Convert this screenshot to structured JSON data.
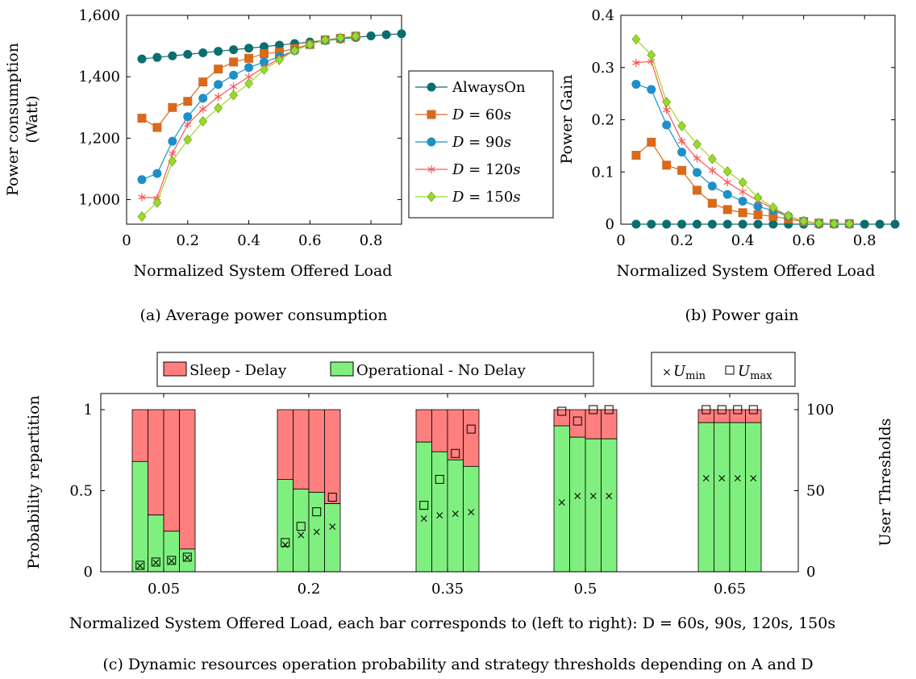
{
  "chart_data": [
    {
      "type": "line",
      "caption": "(a) Average power consumption",
      "xlabel": "Normalized System Offered Load",
      "ylabel": [
        "Power consumption",
        "(Watt)"
      ],
      "xlim": [
        0,
        0.9
      ],
      "ylim": [
        920,
        1600
      ],
      "xticks": [
        0,
        0.2,
        0.4,
        0.6,
        0.8
      ],
      "xtick_labels": [
        "0",
        "0.2",
        "0.4",
        "0.6",
        "0.8"
      ],
      "yticks": [
        1000,
        1200,
        1400,
        1600
      ],
      "ytick_labels": [
        "1,000",
        "1,200",
        "1,400",
        "1,600"
      ],
      "grid": false,
      "legend_position": "outside-right",
      "x": [
        0.05,
        0.1,
        0.15,
        0.2,
        0.25,
        0.3,
        0.35,
        0.4,
        0.45,
        0.5,
        0.55,
        0.6,
        0.65,
        0.7,
        0.75,
        0.8,
        0.85,
        0.9
      ],
      "series": [
        {
          "name": "AlwaysOn",
          "color": "#0b6e6e",
          "marker": "circle",
          "values": [
            1458,
            1463,
            1468,
            1473,
            1478,
            1483,
            1488,
            1493,
            1498,
            1503,
            1508,
            1513,
            1518,
            1523,
            1528,
            1533,
            1537,
            1540
          ]
        },
        {
          "name": "D = 60s",
          "color": "#d9691b",
          "marker": "square",
          "values": [
            1265,
            1235,
            1300,
            1320,
            1383,
            1425,
            1448,
            1460,
            1475,
            1480,
            1492,
            1505,
            1520,
            1525,
            1532,
            null,
            null,
            null
          ]
        },
        {
          "name": "D = 90s",
          "color": "#1f8fc7",
          "marker": "circle",
          "values": [
            1065,
            1085,
            1190,
            1270,
            1330,
            1375,
            1405,
            1430,
            1448,
            1465,
            1485,
            1505,
            1520,
            1525,
            1532,
            null,
            null,
            null
          ]
        },
        {
          "name": "D = 120s",
          "color": "#ff5555",
          "marker": "star",
          "values": [
            1008,
            1005,
            1150,
            1245,
            1295,
            1335,
            1368,
            1400,
            1430,
            1460,
            1485,
            1505,
            1520,
            1527,
            1532,
            null,
            null,
            null
          ]
        },
        {
          "name": "D = 150s",
          "color": "#99d92a",
          "marker": "diamond",
          "values": [
            945,
            990,
            1125,
            1195,
            1255,
            1298,
            1340,
            1378,
            1423,
            1455,
            1485,
            1505,
            1520,
            1527,
            1532,
            null,
            null,
            null
          ]
        }
      ]
    },
    {
      "type": "line",
      "caption": "(b) Power gain",
      "xlabel": "Normalized System Offered Load",
      "ylabel": "Power Gain",
      "xlim": [
        0,
        0.9
      ],
      "ylim": [
        0,
        0.4
      ],
      "xticks": [
        0,
        0.2,
        0.4,
        0.6,
        0.8
      ],
      "xtick_labels": [
        "0",
        "0.2",
        "0.4",
        "0.6",
        "0.8"
      ],
      "yticks": [
        0,
        0.1,
        0.2,
        0.3,
        0.4
      ],
      "ytick_labels": [
        "0",
        "0.1",
        "0.2",
        "0.3",
        "0.4"
      ],
      "grid": false,
      "x": [
        0.05,
        0.1,
        0.15,
        0.2,
        0.25,
        0.3,
        0.35,
        0.4,
        0.45,
        0.5,
        0.55,
        0.6,
        0.65,
        0.7,
        0.75,
        0.8,
        0.85,
        0.9
      ],
      "series": [
        {
          "name": "AlwaysOn",
          "color": "#0b6e6e",
          "marker": "circle",
          "values": [
            0,
            0,
            0,
            0,
            0,
            0,
            0,
            0,
            0,
            0,
            0,
            0,
            0,
            0,
            0,
            0,
            0,
            0
          ]
        },
        {
          "name": "D = 60s",
          "color": "#d9691b",
          "marker": "square",
          "values": [
            0.132,
            0.157,
            0.113,
            0.103,
            0.065,
            0.04,
            0.028,
            0.022,
            0.018,
            0.015,
            0.01,
            0.005,
            0.002,
            0.001,
            0.001,
            null,
            null,
            null
          ]
        },
        {
          "name": "D = 90s",
          "color": "#1f8fc7",
          "marker": "circle",
          "values": [
            0.268,
            0.258,
            0.19,
            0.138,
            0.099,
            0.073,
            0.057,
            0.044,
            0.034,
            0.026,
            0.015,
            0.006,
            0.002,
            0.001,
            0.001,
            null,
            null,
            null
          ]
        },
        {
          "name": "D = 120s",
          "color": "#ff5555",
          "marker": "star",
          "values": [
            0.309,
            0.312,
            0.219,
            0.159,
            0.126,
            0.103,
            0.08,
            0.062,
            0.045,
            0.03,
            0.015,
            0.006,
            0.002,
            0.001,
            0.001,
            null,
            null,
            null
          ]
        },
        {
          "name": "D = 150s",
          "color": "#99d92a",
          "marker": "diamond",
          "values": [
            0.354,
            0.324,
            0.234,
            0.188,
            0.153,
            0.125,
            0.101,
            0.08,
            0.051,
            0.032,
            0.016,
            0.006,
            0.002,
            0.001,
            0.001,
            null,
            null,
            null
          ]
        }
      ]
    },
    {
      "type": "bar",
      "stacked": true,
      "caption": "(c) Dynamic resources operation probability and strategy thresholds depending on A and D",
      "xlabel": "Normalized System Offered Load, each bar corresponds to (left to right): D = 60s, 90s, 120s, 150s",
      "ylabel": "Probability repartition",
      "ylabel_right": "User Thresholds",
      "ylim": [
        0,
        1
      ],
      "ylim_right": [
        0,
        100
      ],
      "yticks": [
        0,
        0.5,
        1
      ],
      "ytick_labels": [
        "0",
        "0.5",
        "1"
      ],
      "yticks_right": [
        0,
        50,
        100
      ],
      "ytick_labels_right": [
        "0",
        "50",
        "100"
      ],
      "categories": [
        "0.05",
        "0.2",
        "0.35",
        "0.5",
        "0.65"
      ],
      "bar_names": [
        "D = 60s",
        "D = 90s",
        "D = 120s",
        "D = 150s"
      ],
      "stack_legend": [
        {
          "name": "Sleep - Delay",
          "color": "#ff7f7f"
        },
        {
          "name": "Operational - No Delay",
          "color": "#7ff07f"
        }
      ],
      "marker_legend": [
        {
          "name": "U_min",
          "symbol": "×"
        },
        {
          "name": "U_max",
          "symbol": "□"
        }
      ],
      "operational": [
        [
          0.68,
          0.35,
          0.25,
          0.14
        ],
        [
          0.57,
          0.51,
          0.49,
          0.42
        ],
        [
          0.8,
          0.74,
          0.69,
          0.65
        ],
        [
          0.9,
          0.83,
          0.82,
          0.82
        ],
        [
          0.92,
          0.92,
          0.92,
          0.92
        ]
      ],
      "u_min": [
        [
          4,
          6,
          7,
          9
        ],
        [
          17,
          23,
          25,
          28
        ],
        [
          33,
          35,
          36,
          37
        ],
        [
          43,
          47,
          47,
          47
        ],
        [
          58,
          58,
          58,
          58
        ]
      ],
      "u_max": [
        [
          4,
          6,
          7,
          9
        ],
        [
          18,
          28,
          37,
          46
        ],
        [
          41,
          57,
          73,
          88
        ],
        [
          99,
          93,
          100,
          100
        ],
        [
          100,
          100,
          100,
          100
        ]
      ]
    }
  ],
  "legend_ab": {
    "entries": [
      {
        "prefix": "",
        "label": "AlwaysOn"
      },
      {
        "prefix": "D",
        "label": " = 60"
      },
      {
        "prefix": "D",
        "label": " = 90"
      },
      {
        "prefix": "D",
        "label": " = 120"
      },
      {
        "prefix": "D",
        "label": " = 150"
      }
    ],
    "unit": "s"
  }
}
